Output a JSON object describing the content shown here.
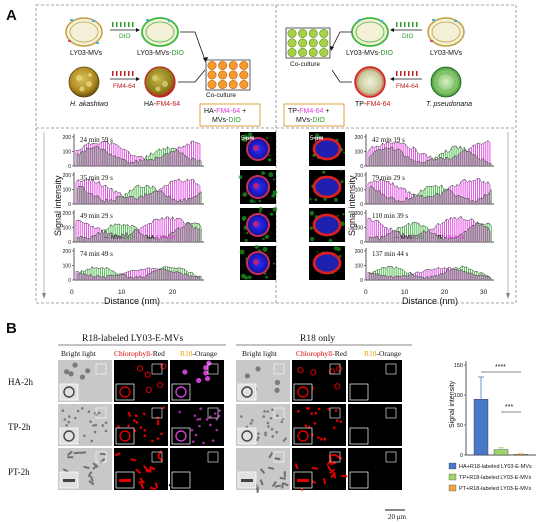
{
  "panel_a": {
    "label": "A",
    "left_scheme": {
      "mvs_before": "LY03-MVs",
      "dio_arrow": "DIO",
      "mvs_after_prefix": "LY03-MVs-",
      "mvs_after_dye": "DIO",
      "cell_before": "H. akashiwo",
      "fm_arrow": "FM4-64",
      "cell_after_prefix": "HA-",
      "cell_after_dye": "FM4-64",
      "coculture": "Co-culture",
      "legend_box_prefix": "HA-",
      "legend_box_dye": "FM4-64",
      "legend_box_plus": " +",
      "legend_box_line2_prefix": "MVs-",
      "legend_box_line2_dye": "DIO"
    },
    "right_scheme": {
      "mvs_before": "LY03-MVs",
      "dio_arrow": "DIO",
      "mvs_after_prefix": "LY03-MVs-",
      "mvs_after_dye": "DIO",
      "cell_before": "T. pseudonana",
      "fm_arrow": "FM4-64",
      "cell_after_prefix": "TP-",
      "cell_after_dye": "FM4-64",
      "coculture": "Co-culture",
      "legend_box_prefix": "TP-",
      "legend_box_dye": "FM4-64",
      "legend_box_plus": " +",
      "legend_box_line2_prefix": "MVs-",
      "legend_box_line2_dye": "DIO"
    },
    "left_plots": {
      "y_label": "Signal intensity",
      "x_label": "Distance (nm)",
      "x_ticks": [
        "0",
        "10",
        "20"
      ],
      "y_ticks": [
        "0",
        "100",
        "200"
      ],
      "times": [
        "24 min 59 s",
        "35 min 29 s",
        "49 min 29 s",
        "74 min 49 s"
      ],
      "legend_dio_prefix": "MVs-",
      "legend_dio_dye": "DIO",
      "legend_fm_prefix": "HA-",
      "legend_fm_dye": "FM4-64",
      "scale_bar": "5 μm"
    },
    "right_plots": {
      "y_label": "Signal intensity",
      "x_label": "Distance (nm)",
      "x_ticks": [
        "0",
        "10",
        "20",
        "30"
      ],
      "y_ticks": [
        "0",
        "100",
        "200"
      ],
      "times": [
        "42 min 19 s",
        "79 min 29 s",
        "110 min 39 s",
        "137 min 44 s"
      ],
      "legend_dio_prefix": "MVs-",
      "legend_dio_dye": "DIO",
      "legend_fm_prefix": "TP-",
      "legend_fm_dye": "FM4-64",
      "scale_bar": "5 μm"
    }
  },
  "panel_b": {
    "label": "B",
    "group1_title": "R18-labeled LY03-E-MVs",
    "group2_title": "R18 only",
    "col_bright": "Bright light",
    "col_chl_prefix": "Chlorophyll-",
    "col_chl_color": "Red",
    "col_r18_prefix": "R18",
    "col_r18_color": "-Orange",
    "rows": [
      "HA-2h",
      "TP-2h",
      "PT-2h"
    ],
    "scale_bar": "20 μm",
    "bar_chart": {
      "y_label": "Signal intensity",
      "y_ticks": [
        "0",
        "50",
        "100",
        "150"
      ],
      "sig1": "****",
      "sig2": "***",
      "legend": [
        "HA+R18-labeled LY03-E-MVs",
        "TP+R18-labeled LY03-E-MVs",
        "PT+R18-labeled LY03-E-MVs"
      ]
    }
  },
  "colors": {
    "dio_green": "#3cb83c",
    "fm_magenta": "#e040e0",
    "fm_red": "#e0202a",
    "chl_red": "#e00000",
    "r18_orange": "#e8a000",
    "bar_blue": "#4a78c8",
    "bar_green": "#9fd36a",
    "bar_orange": "#f0a050"
  },
  "chart_data": {
    "type": "bar",
    "categories": [
      "HA+R18-labeled LY03-E-MVs",
      "TP+R18-labeled LY03-E-MVs",
      "PT+R18-labeled LY03-E-MVs"
    ],
    "values": [
      93,
      9,
      1
    ],
    "errors": [
      37,
      3,
      1
    ],
    "ylabel": "Signal intensity",
    "ylim": [
      0,
      150
    ]
  }
}
